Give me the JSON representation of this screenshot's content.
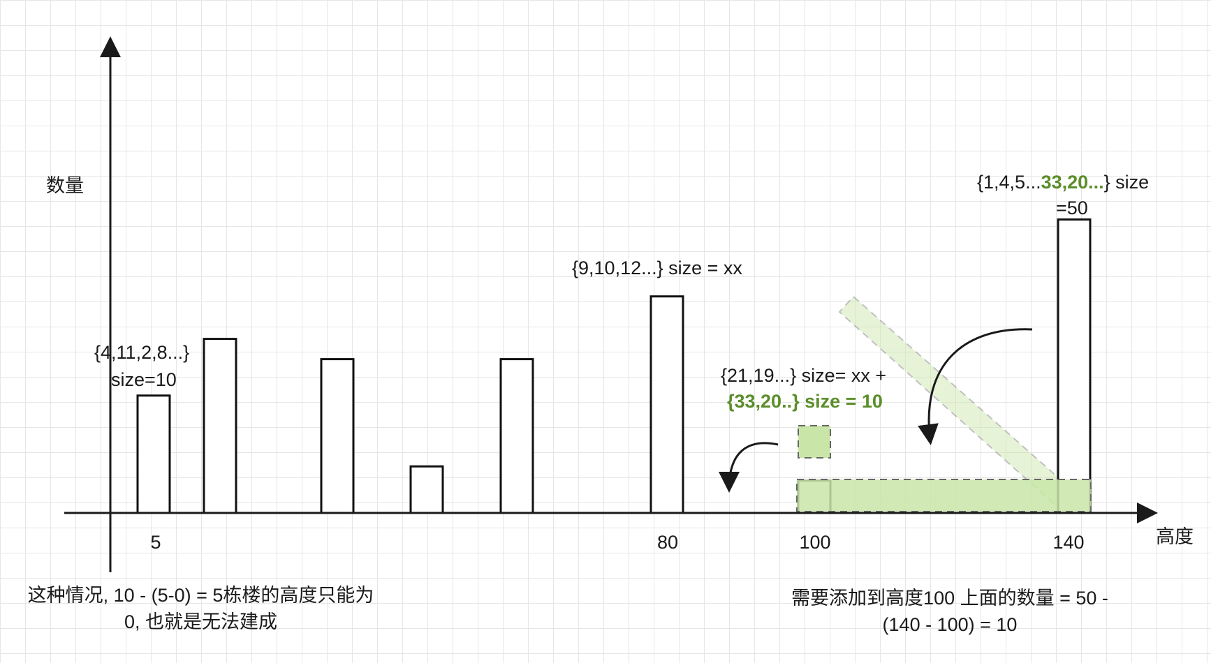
{
  "axis": {
    "y_label": "数量",
    "x_label": "高度",
    "ticks": [
      "5",
      "80",
      "100",
      "140"
    ]
  },
  "bars": [
    {
      "id": "bar-1",
      "level": 0.58
    },
    {
      "id": "bar-2",
      "level": 0.86
    },
    {
      "id": "bar-3",
      "level": 0.76
    },
    {
      "id": "bar-4",
      "level": 0.23
    },
    {
      "id": "bar-5",
      "level": 0.76
    },
    {
      "id": "bar-6",
      "level": 1.07
    },
    {
      "id": "bar-7",
      "level": 0.16
    },
    {
      "id": "bar-8",
      "level": 1.45
    }
  ],
  "labels": {
    "group_5": {
      "line1": "{4,11,2,8...}",
      "line2": "size=10"
    },
    "group_80": "{9,10,12...} size = xx",
    "group_100": {
      "line1": "{21,19...} size= xx +",
      "line2_highlight": "{33,20..} size = 10"
    },
    "group_140": {
      "prefix": "{1,4,5...",
      "highlight": "33,20...",
      "suffix": "} size",
      "line2": "=50"
    }
  },
  "notes": {
    "left": {
      "line1": "这种情况, 10 - (5-0) = 5栋楼的高度只能为",
      "line2": "0, 也就是无法建成"
    },
    "right": {
      "line1": "需要添加到高度100 上面的数量 = 50 -",
      "line2": "(140 - 100) = 10"
    }
  },
  "colors": {
    "axis": "#1a1a1a",
    "bar_fill": "#ffffff",
    "bar_stroke": "#111111",
    "green_fill": "#c9e6a8",
    "green_stroke": "#777777",
    "highlight_text": "#5b8e2a"
  }
}
